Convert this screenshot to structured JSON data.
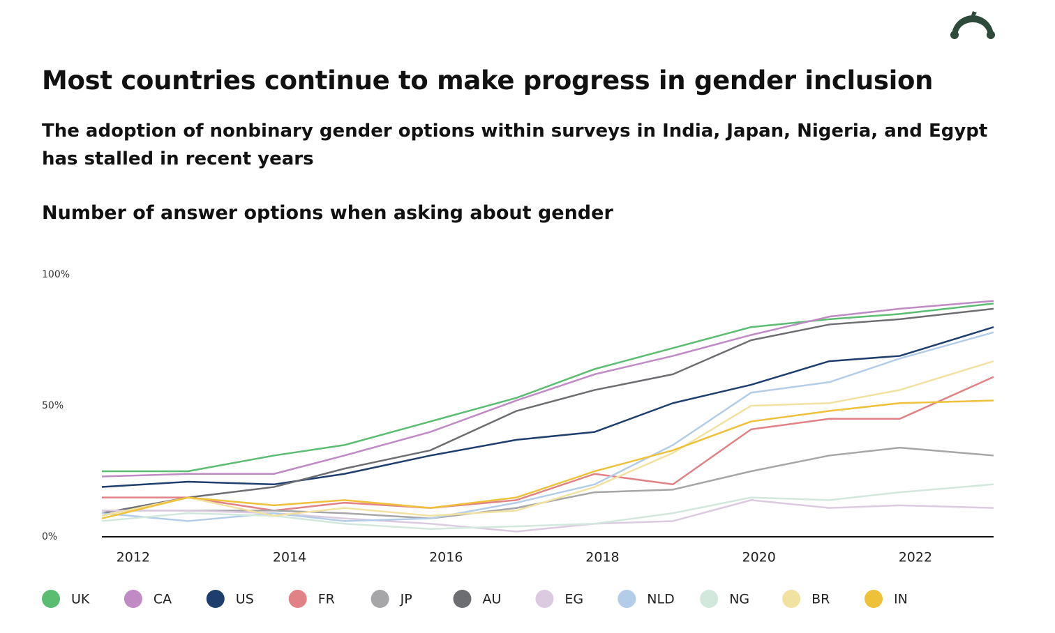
{
  "chart_data": {
    "type": "line",
    "title": "Most countries continue to make progress in gender inclusion",
    "subtitle": "The adoption of nonbinary gender options within surveys in India, Japan, Nigeria, and Egypt has stalled in recent years",
    "chart_title": "Number of answer options when asking about gender",
    "x": [
      2011.6,
      2012.7,
      2013.8,
      2014.7,
      2015.8,
      2016.9,
      2017.9,
      2018.9,
      2019.9,
      2020.9,
      2021.8,
      2023.0
    ],
    "xlim": [
      2011.6,
      2023.0
    ],
    "xticks": [
      2012,
      2014,
      2016,
      2018,
      2020,
      2022
    ],
    "ylim": [
      0,
      100
    ],
    "yticks": [
      {
        "value": 0,
        "label": "0%"
      },
      {
        "value": 50,
        "label": "50%"
      },
      {
        "value": 100,
        "label": "100%"
      }
    ],
    "grid": false,
    "legend": "bottom",
    "series": [
      {
        "name": "UK",
        "color": "#5bbd72",
        "values": [
          25,
          25,
          31,
          35,
          44,
          53,
          64,
          72,
          80,
          83,
          85,
          89
        ]
      },
      {
        "name": "CA",
        "color": "#c08ac4",
        "values": [
          23,
          24,
          24,
          31,
          40,
          52,
          62,
          69,
          77,
          84,
          87,
          90
        ]
      },
      {
        "name": "US",
        "color": "#1e3f6e",
        "values": [
          19,
          21,
          20,
          24,
          31,
          37,
          40,
          51,
          58,
          67,
          69,
          80
        ]
      },
      {
        "name": "FR",
        "color": "#e08286",
        "values": [
          15,
          15,
          10,
          13,
          11,
          14,
          24,
          20,
          41,
          45,
          45,
          61
        ]
      },
      {
        "name": "JP",
        "color": "#a6a6a8",
        "values": [
          10,
          10,
          10,
          9,
          7,
          11,
          17,
          18,
          25,
          31,
          34,
          31
        ]
      },
      {
        "name": "AU",
        "color": "#6d6e71",
        "values": [
          9,
          15,
          19,
          26,
          33,
          48,
          56,
          62,
          75,
          81,
          83,
          87
        ]
      },
      {
        "name": "EG",
        "color": "#dccbe0",
        "values": [
          10,
          10,
          9,
          7,
          5,
          2,
          5,
          6,
          14,
          11,
          12,
          11
        ]
      },
      {
        "name": "NLD",
        "color": "#b3cde8",
        "values": [
          9,
          6,
          9,
          6,
          7,
          13,
          20,
          35,
          55,
          59,
          68,
          78
        ]
      },
      {
        "name": "NG",
        "color": "#d3e8dd",
        "values": [
          6,
          9,
          8,
          5,
          3,
          4,
          5,
          9,
          15,
          14,
          17,
          20
        ]
      },
      {
        "name": "BR",
        "color": "#f2e2a1",
        "values": [
          8,
          15,
          8,
          11,
          8,
          10,
          19,
          32,
          50,
          51,
          56,
          67
        ]
      },
      {
        "name": "IN",
        "color": "#efc13a",
        "values": [
          7,
          15,
          12,
          14,
          11,
          15,
          25,
          33,
          44,
          48,
          51,
          52
        ]
      }
    ]
  }
}
